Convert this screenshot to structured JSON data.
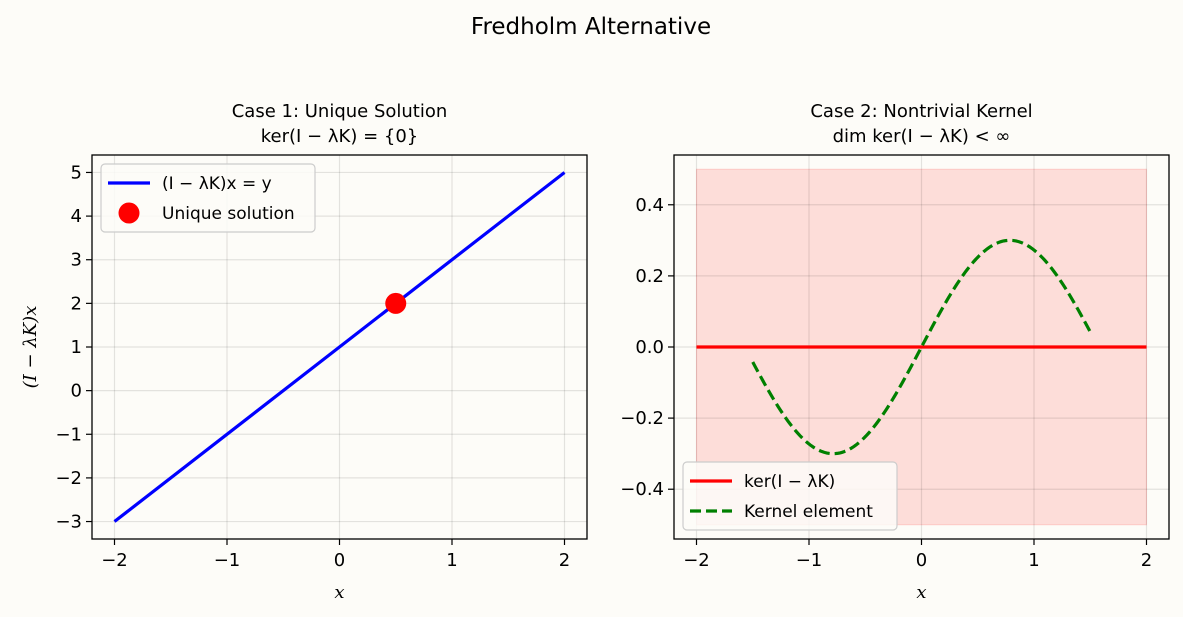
{
  "figure": {
    "suptitle": "Fredholm Alternative",
    "background": "#fdfcf8"
  },
  "chart_data": [
    {
      "type": "line",
      "title_line1": "Case 1: Unique Solution",
      "title_line2": "ker(I − λK) = {0}",
      "xlabel": "x",
      "ylabel": "(I − λK)x",
      "xlim": [
        -2.2,
        2.2
      ],
      "ylim": [
        -3.4,
        5.4
      ],
      "xticks": [
        -2,
        -1,
        0,
        1,
        2
      ],
      "yticks": [
        -3,
        -2,
        -1,
        0,
        1,
        2,
        3,
        4,
        5
      ],
      "grid": true,
      "legend_position": "upper-left",
      "series": [
        {
          "name": "(I − λK)x = y",
          "kind": "line",
          "color": "#0000ff",
          "x": [
            -2,
            2
          ],
          "y": [
            -3,
            5
          ]
        },
        {
          "name": "Unique solution",
          "kind": "point",
          "color": "#ff0000",
          "x": [
            0.5
          ],
          "y": [
            2
          ]
        }
      ]
    },
    {
      "type": "line",
      "title_line1": "Case 2: Nontrivial Kernel",
      "title_line2": "dim ker(I − λK) < ∞",
      "xlabel": "x",
      "ylabel": "",
      "xlim": [
        -2.2,
        2.2
      ],
      "ylim": [
        -0.54,
        0.54
      ],
      "xticks": [
        -2,
        -1,
        0,
        1,
        2
      ],
      "yticks": [
        -0.4,
        -0.2,
        0.0,
        0.2,
        0.4
      ],
      "ytick_labels": [
        "−0.4",
        "−0.2",
        "0.0",
        "0.2",
        "0.4"
      ],
      "grid": true,
      "legend_position": "lower-left",
      "shaded_region": {
        "x": [
          -2,
          2
        ],
        "y": [
          -0.5,
          0.5
        ],
        "color": "#ff0000",
        "alpha": 0.12
      },
      "series": [
        {
          "name": "ker(I − λK)",
          "kind": "line",
          "color": "#ff0000",
          "x": [
            -2,
            2
          ],
          "y": [
            0,
            0
          ]
        },
        {
          "name": "Kernel element",
          "kind": "dashed",
          "color": "#008000",
          "function": "0.3*sin(2x)",
          "x_range": [
            -1.5,
            1.5
          ]
        }
      ]
    }
  ]
}
